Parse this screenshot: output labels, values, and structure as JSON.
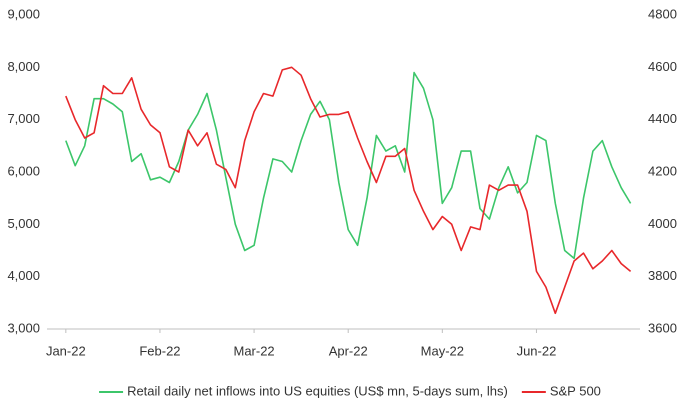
{
  "chart_data": {
    "type": "line",
    "x": [
      0,
      0.1,
      0.2,
      0.3,
      0.4,
      0.5,
      0.6,
      0.7,
      0.8,
      0.9,
      1,
      1.1,
      1.2,
      1.3,
      1.4,
      1.5,
      1.6,
      1.7,
      1.8,
      1.9,
      2,
      2.1,
      2.2,
      2.3,
      2.4,
      2.5,
      2.6,
      2.7,
      2.8,
      2.9,
      3,
      3.1,
      3.2,
      3.3,
      3.4,
      3.5,
      3.6,
      3.7,
      3.8,
      3.9,
      4,
      4.1,
      4.2,
      4.3,
      4.4,
      4.5,
      4.6,
      4.7,
      4.8,
      4.9,
      5,
      5.1,
      5.2,
      5.3,
      5.4,
      5.5,
      5.6,
      5.7,
      5.8,
      5.9,
      6
    ],
    "xlim": [
      -0.2,
      6.1
    ],
    "xticks": [
      {
        "value": 0,
        "label": "Jan-22"
      },
      {
        "value": 1,
        "label": "Feb-22"
      },
      {
        "value": 2,
        "label": "Mar-22"
      },
      {
        "value": 3,
        "label": "Apr-22"
      },
      {
        "value": 4,
        "label": "May-22"
      },
      {
        "value": 5,
        "label": "Jun-22"
      }
    ],
    "ylim": [
      3000,
      9000
    ],
    "yticks": [
      {
        "value": 3000,
        "label": "3,000"
      },
      {
        "value": 4000,
        "label": "4,000"
      },
      {
        "value": 5000,
        "label": "5,000"
      },
      {
        "value": 6000,
        "label": "6,000"
      },
      {
        "value": 7000,
        "label": "7,000"
      },
      {
        "value": 8000,
        "label": "8,000"
      },
      {
        "value": 9000,
        "label": "9,000"
      }
    ],
    "y2lim": [
      3600,
      4800
    ],
    "y2ticks": [
      3600,
      3800,
      4000,
      4200,
      4400,
      4600,
      4800
    ],
    "grid": false,
    "legend": "bottom",
    "series": [
      {
        "name": "Retail daily net inflows into US equities (US$ mn, 5-days sum, lhs)",
        "color": "#3cc66a",
        "values": [
          6600,
          6120,
          6500,
          7400,
          7400,
          7300,
          7150,
          6200,
          6350,
          5850,
          5900,
          5800,
          6200,
          6800,
          7100,
          7500,
          6800,
          5900,
          5000,
          4500,
          4600,
          5500,
          6250,
          6200,
          6000,
          6600,
          7100,
          7350,
          7000,
          5800,
          4900,
          4600,
          5500,
          6700,
          6400,
          6500,
          6000,
          7900,
          7600,
          7000,
          5400,
          5700,
          6400,
          6400,
          5300,
          5100,
          5700,
          6100,
          5600,
          5800,
          6700,
          6600,
          5400,
          4500,
          4350,
          5500,
          6400,
          6600,
          6100,
          5700,
          5400
        ]
      },
      {
        "name": "S&P 500",
        "color": "#e8282b",
        "axis": "y2",
        "values": [
          4490,
          4400,
          4330,
          4350,
          4530,
          4500,
          4500,
          4560,
          4440,
          4380,
          4350,
          4220,
          4200,
          4360,
          4300,
          4350,
          4230,
          4210,
          4140,
          4320,
          4430,
          4500,
          4490,
          4590,
          4600,
          4570,
          4480,
          4410,
          4420,
          4420,
          4430,
          4330,
          4240,
          4160,
          4260,
          4260,
          4290,
          4130,
          4050,
          3980,
          4030,
          4000,
          3900,
          3990,
          3980,
          4150,
          4130,
          4150,
          4150,
          4050,
          3820,
          3760,
          3660,
          3760,
          3860,
          3890,
          3830,
          3860,
          3900,
          3850,
          3820
        ]
      }
    ]
  }
}
